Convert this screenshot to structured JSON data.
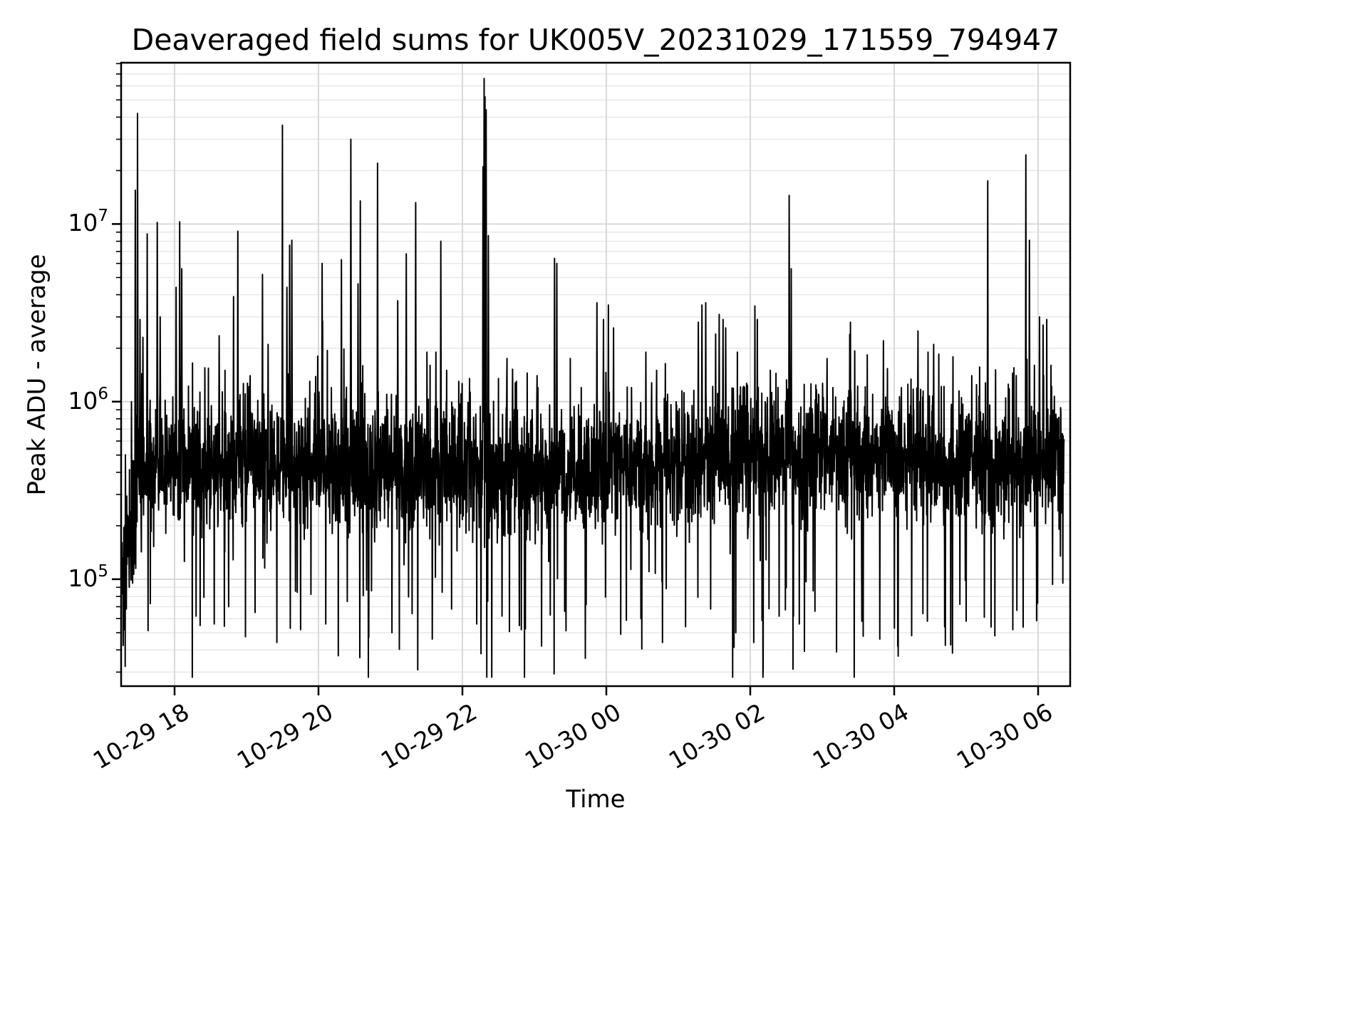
{
  "page": {
    "background": "#ffffff"
  },
  "chart_data": {
    "type": "line",
    "title": "Deaveraged field sums for UK005V_20231029_171559_794947",
    "xlabel": "Time",
    "ylabel": "Peak ADU - average",
    "grid": true,
    "legend_position": "none",
    "line_color": "#000000",
    "grid_major_color": "#d5d5d5",
    "grid_minor_color": "#e7e7e7",
    "x_axis": {
      "unit": "hours, 0 = 2023-10-29 00:00",
      "range": [
        17.257,
        30.446
      ],
      "ticks": [
        {
          "t": 18,
          "label": "10-29 18"
        },
        {
          "t": 20,
          "label": "10-29 20"
        },
        {
          "t": 22,
          "label": "10-29 22"
        },
        {
          "t": 24,
          "label": "10-30 00"
        },
        {
          "t": 26,
          "label": "10-30 02"
        },
        {
          "t": 28,
          "label": "10-30 04"
        },
        {
          "t": 30,
          "label": "10-30 06"
        }
      ]
    },
    "y_axis": {
      "scale": "log",
      "lim": [
        25000.0,
        81000000.0
      ],
      "major_ticks": [
        100000.0,
        1000000.0,
        10000000.0
      ]
    },
    "series": {
      "name": "deaveraged-field-sum",
      "n_points": 4200,
      "t_start": 17.27,
      "t_end": 30.36,
      "baseline_median": 420000.0,
      "noise_log10_sigma": 0.16,
      "spikes": [
        [
          17.4,
          1000000.0
        ],
        [
          17.455,
          15500000.0
        ],
        [
          17.485,
          42000000.0
        ],
        [
          17.52,
          2900000.0
        ],
        [
          17.56,
          2300000.0
        ],
        [
          17.62,
          8800000.0
        ],
        [
          17.76,
          10200000.0
        ],
        [
          17.8,
          3000000.0
        ],
        [
          18.02,
          4400000.0
        ],
        [
          18.07,
          10300000.0
        ],
        [
          18.1,
          5600000.0
        ],
        [
          18.25,
          1650000.0
        ],
        [
          18.42,
          1550000.0
        ],
        [
          18.62,
          2350000.0
        ],
        [
          18.82,
          3900000.0
        ],
        [
          18.88,
          9100000.0
        ],
        [
          19.05,
          1400000.0
        ],
        [
          19.22,
          5200000.0
        ],
        [
          19.3,
          2100000.0
        ],
        [
          19.5,
          36000000.0
        ],
        [
          19.56,
          4400000.0
        ],
        [
          19.6,
          7600000.0
        ],
        [
          19.63,
          8100000.0
        ],
        [
          19.88,
          1300000.0
        ],
        [
          20.05,
          6000000.0
        ],
        [
          20.18,
          1200000.0
        ],
        [
          20.32,
          6300000.0
        ],
        [
          20.45,
          30000000.0
        ],
        [
          20.55,
          4600000.0
        ],
        [
          20.58,
          13500000.0
        ],
        [
          20.82,
          22000000.0
        ],
        [
          20.95,
          1100000.0
        ],
        [
          21.1,
          3700000.0
        ],
        [
          21.22,
          6800000.0
        ],
        [
          21.35,
          13200000.0
        ],
        [
          21.55,
          1600000.0
        ],
        [
          21.63,
          1900000.0
        ],
        [
          21.7,
          8000000.0
        ],
        [
          21.78,
          1500000.0
        ],
        [
          21.95,
          1300000.0
        ],
        [
          22.1,
          1350000.0
        ],
        [
          22.285,
          21000000.0
        ],
        [
          22.3,
          66000000.0
        ],
        [
          22.315,
          52000000.0
        ],
        [
          22.33,
          44000000.0
        ],
        [
          22.36,
          8600000.0
        ],
        [
          22.5,
          1350000.0
        ],
        [
          22.62,
          1750000.0
        ],
        [
          22.75,
          1300000.0
        ],
        [
          22.9,
          1450000.0
        ],
        [
          23.05,
          1200000.0
        ],
        [
          23.28,
          6400000.0
        ],
        [
          23.31,
          6000000.0
        ],
        [
          23.5,
          1750000.0
        ],
        [
          23.65,
          1200000.0
        ],
        [
          23.87,
          3600000.0
        ],
        [
          23.96,
          2900000.0
        ],
        [
          24.03,
          3500000.0
        ],
        [
          24.1,
          2600000.0
        ],
        [
          24.35,
          1200000.0
        ],
        [
          24.55,
          1900000.0
        ],
        [
          24.7,
          1500000.0
        ],
        [
          24.85,
          1100000.0
        ],
        [
          25.05,
          1150000.0
        ],
        [
          25.28,
          2800000.0
        ],
        [
          25.33,
          3500000.0
        ],
        [
          25.38,
          3600000.0
        ],
        [
          25.52,
          2400000.0
        ],
        [
          25.57,
          3100000.0
        ],
        [
          25.62,
          2900000.0
        ],
        [
          25.66,
          2600000.0
        ],
        [
          25.9,
          1200000.0
        ],
        [
          26.1,
          2900000.0
        ],
        [
          26.28,
          1500000.0
        ],
        [
          26.54,
          14500000.0
        ],
        [
          26.57,
          5600000.0
        ],
        [
          26.75,
          1250000.0
        ],
        [
          26.95,
          1100000.0
        ],
        [
          27.15,
          1200000.0
        ],
        [
          27.4,
          1150000.0
        ],
        [
          27.7,
          1100000.0
        ],
        [
          27.85,
          2200000.0
        ],
        [
          28.1,
          1200000.0
        ],
        [
          28.33,
          2500000.0
        ],
        [
          28.47,
          1900000.0
        ],
        [
          28.55,
          2100000.0
        ],
        [
          28.62,
          1850000.0
        ],
        [
          28.9,
          1150000.0
        ],
        [
          29.08,
          1400000.0
        ],
        [
          29.3,
          17500000.0
        ],
        [
          29.55,
          1050000.0
        ],
        [
          29.83,
          24500000.0
        ],
        [
          29.88,
          8100000.0
        ],
        [
          29.95,
          1600000.0
        ],
        [
          30.02,
          3000000.0
        ],
        [
          30.07,
          2700000.0
        ],
        [
          30.12,
          2900000.0
        ],
        [
          30.18,
          1600000.0
        ],
        [
          17.3,
          52000.0
        ],
        [
          17.33,
          68000.0
        ],
        [
          17.37,
          90000.0
        ],
        [
          18.3,
          62000.0
        ],
        [
          18.55,
          56000.0
        ],
        [
          18.75,
          70000.0
        ],
        [
          19.12,
          65000.0
        ],
        [
          19.42,
          44000.0
        ],
        [
          19.75,
          52000.0
        ],
        [
          20.1,
          56000.0
        ],
        [
          20.4,
          75000.0
        ],
        [
          20.7,
          47000.0
        ],
        [
          21.02,
          50000.0
        ],
        [
          21.3,
          64000.0
        ],
        [
          21.58,
          46000.0
        ],
        [
          21.85,
          68000.0
        ],
        [
          22.2,
          56000.0
        ],
        [
          22.55,
          62000.0
        ],
        [
          22.82,
          52000.0
        ],
        [
          23.1,
          42000.0
        ],
        [
          23.42,
          66000.0
        ],
        [
          23.72,
          72000.0
        ],
        [
          24.2,
          49000.0
        ],
        [
          24.48,
          60000.0
        ],
        [
          24.78,
          44000.0
        ],
        [
          25.1,
          54000.0
        ],
        [
          25.45,
          68000.0
        ],
        [
          25.8,
          50000.0
        ],
        [
          26.05,
          44000.0
        ],
        [
          26.4,
          62000.0
        ],
        [
          26.68,
          56000.0
        ],
        [
          26.9,
          66000.0
        ],
        [
          27.2,
          39000.0
        ],
        [
          27.55,
          58000.0
        ],
        [
          27.8,
          46000.0
        ],
        [
          28.05,
          42000.0
        ],
        [
          28.4,
          64000.0
        ],
        [
          28.7,
          54000.0
        ],
        [
          29.0,
          58000.0
        ],
        [
          29.4,
          48000.0
        ],
        [
          29.65,
          52000.0
        ],
        [
          30.31,
          135000.0
        ],
        [
          30.345,
          95000.0
        ]
      ]
    }
  }
}
